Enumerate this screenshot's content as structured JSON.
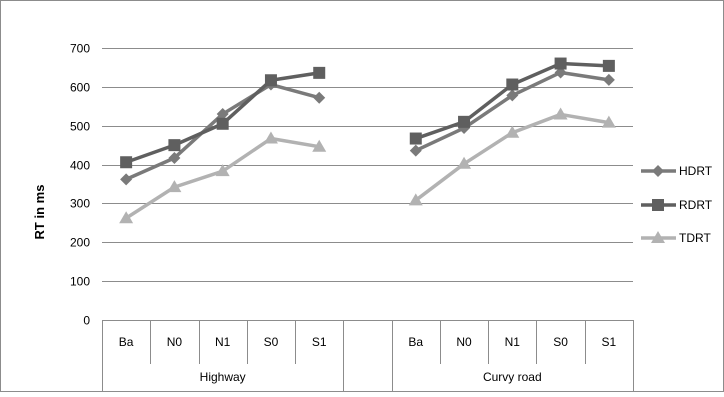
{
  "chart_data": {
    "type": "line",
    "title": "",
    "xlabel": "",
    "ylabel": "RT in ms",
    "ylim": [
      0,
      700
    ],
    "y_ticks": [
      0,
      100,
      200,
      300,
      400,
      500,
      600,
      700
    ],
    "grid": true,
    "legend_position": "right",
    "groups": [
      {
        "name": "Highway",
        "categories": [
          "Ba",
          "N0",
          "N1",
          "S0",
          "S1"
        ]
      },
      {
        "name": "Curvy road",
        "categories": [
          "Ba",
          "N0",
          "N1",
          "S0",
          "S1"
        ]
      }
    ],
    "series": [
      {
        "name": "HDRT",
        "marker": "diamond",
        "color": "#7a7a7a",
        "values": [
          [
            362,
            417,
            530,
            606,
            572
          ],
          [
            436,
            494,
            578,
            637,
            618
          ]
        ]
      },
      {
        "name": "RDRT",
        "marker": "square",
        "color": "#5f5f5f",
        "values": [
          [
            406,
            450,
            505,
            617,
            636
          ],
          [
            467,
            510,
            606,
            660,
            654
          ]
        ]
      },
      {
        "name": "TDRT",
        "marker": "triangle",
        "color": "#b2b2b2",
        "values": [
          [
            262,
            342,
            383,
            467,
            446
          ],
          [
            308,
            402,
            482,
            529,
            508
          ]
        ]
      }
    ]
  }
}
